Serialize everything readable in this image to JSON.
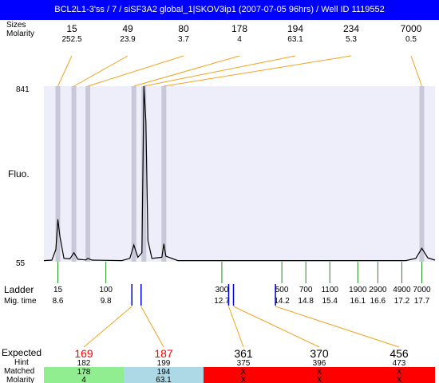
{
  "title": "BCL2L1-3'ss / 7 / siSF3A2 global_1|SKOV3ip1 (2007-07-05 96hrs) / Well ID 1119552",
  "colors": {
    "title_bg": "#0000ff",
    "plot_bg": "#eeeefa",
    "peak_band": "#c8c8d8",
    "orange_connector": "#f4a21f",
    "ladder_tick": "#228b22",
    "blue_marker": "#0000dd",
    "expected_red": "#ff0000",
    "matched_green": "#90ee90",
    "matched_blue": "#add8e6",
    "matched_red": "#ff0000"
  },
  "labels": {
    "sizes": "Sizes",
    "molarity": "Molarity",
    "fluo": "Fluo.",
    "ladder": "Ladder",
    "mig_time": "Mig. time",
    "expected": "Expected",
    "hint": "Hint",
    "matched": "Matched",
    "molarity_bottom": "Molarity"
  },
  "chart_data": {
    "type": "line",
    "ylabel": "Fluo.",
    "ylim": [
      55,
      841
    ],
    "y_ticks": [
      841,
      55
    ],
    "xlim": [
      8.25,
      18.03
    ],
    "peaks": [
      {
        "size": "15",
        "molarity": "252.5",
        "mig_time": 8.6
      },
      {
        "size": "49",
        "molarity": "23.9",
        "mig_time": 9.0
      },
      {
        "size": "80",
        "molarity": "3.7",
        "mig_time": 9.35
      },
      {
        "size": "178",
        "molarity": "4",
        "mig_time": 10.5
      },
      {
        "size": "194",
        "molarity": "63.1",
        "mig_time": 10.75
      },
      {
        "size": "234",
        "molarity": "5.3",
        "mig_time": 11.25
      },
      {
        "size": "7000",
        "molarity": "0.5",
        "mig_time": 17.7
      }
    ],
    "trace": [
      [
        8.25,
        60
      ],
      [
        8.45,
        62
      ],
      [
        8.55,
        110
      ],
      [
        8.6,
        245
      ],
      [
        8.65,
        170
      ],
      [
        8.75,
        70
      ],
      [
        8.9,
        68
      ],
      [
        9.0,
        95
      ],
      [
        9.1,
        66
      ],
      [
        9.3,
        63
      ],
      [
        9.35,
        70
      ],
      [
        9.45,
        62
      ],
      [
        10.2,
        60
      ],
      [
        10.4,
        70
      ],
      [
        10.5,
        130
      ],
      [
        10.6,
        75
      ],
      [
        10.7,
        95
      ],
      [
        10.75,
        841
      ],
      [
        10.8,
        680
      ],
      [
        10.85,
        150
      ],
      [
        10.95,
        70
      ],
      [
        11.2,
        75
      ],
      [
        11.25,
        135
      ],
      [
        11.3,
        80
      ],
      [
        11.6,
        60
      ],
      [
        17.3,
        60
      ],
      [
        17.55,
        70
      ],
      [
        17.7,
        115
      ],
      [
        17.85,
        72
      ],
      [
        18.03,
        62
      ]
    ],
    "ladder": [
      {
        "size": "15",
        "mig_time": "8.6"
      },
      {
        "size": "100",
        "mig_time": "9.8"
      },
      {
        "size": "300",
        "mig_time": "12.7"
      },
      {
        "size": "500",
        "mig_time": "14.2"
      },
      {
        "size": "700",
        "mig_time": "14.8"
      },
      {
        "size": "1100",
        "mig_time": "15.4"
      },
      {
        "size": "1900",
        "mig_time": "16.1"
      },
      {
        "size": "2900",
        "mig_time": "16.6"
      },
      {
        "size": "4900",
        "mig_time": "17.2"
      },
      {
        "size": "7000",
        "mig_time": "17.7"
      }
    ],
    "expected": [
      {
        "expected": "169",
        "hint": "182",
        "matched": "178",
        "molarity": "4",
        "status": "green"
      },
      {
        "expected": "187",
        "hint": "199",
        "matched": "194",
        "molarity": "63.1",
        "status": "blue"
      },
      {
        "expected": "361",
        "hint": "375",
        "matched": "X",
        "molarity": "X",
        "status": "red"
      },
      {
        "expected": "370",
        "hint": "396",
        "matched": "X",
        "molarity": "X",
        "status": "red"
      },
      {
        "expected": "456",
        "hint": "473",
        "matched": "X",
        "molarity": "X",
        "status": "red"
      }
    ]
  }
}
